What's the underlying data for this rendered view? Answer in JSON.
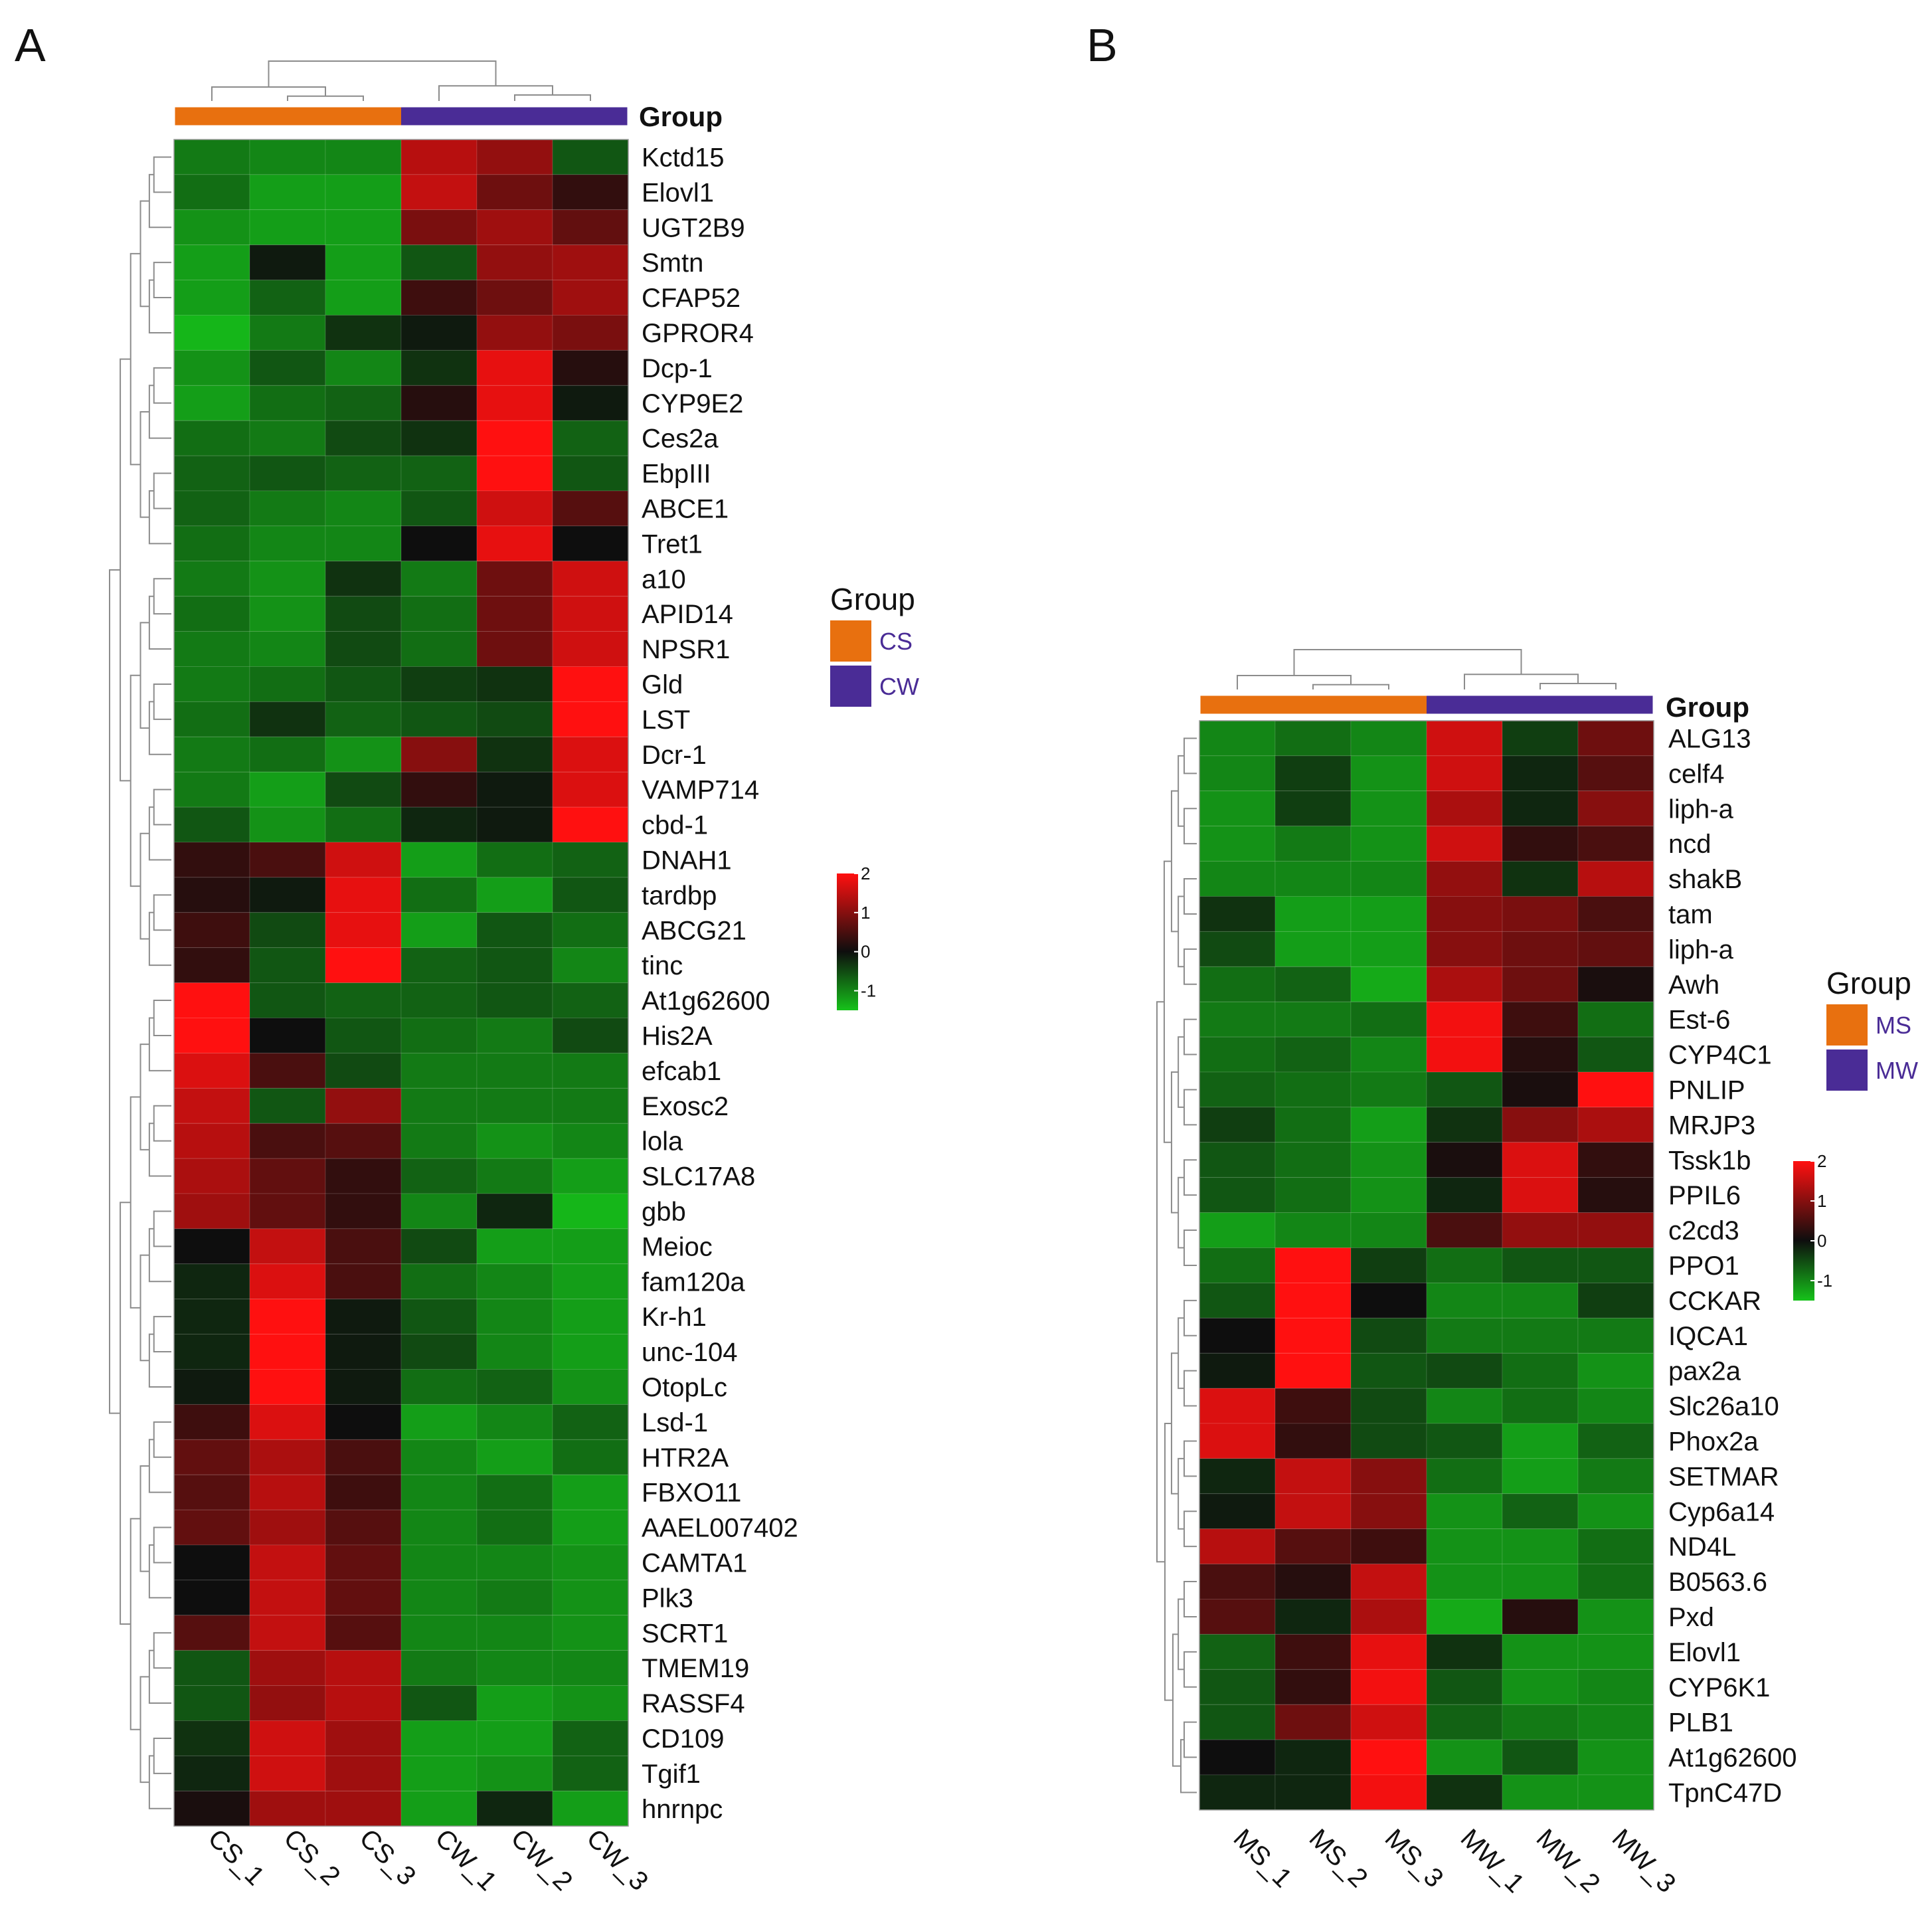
{
  "chart_data": [
    {
      "type": "heatmap",
      "panel": "A",
      "title": "",
      "columns": [
        "CS_1",
        "CS_2",
        "CS_3",
        "CW_1",
        "CW_2",
        "CW_3"
      ],
      "column_groups": [
        "CS",
        "CS",
        "CS",
        "CW",
        "CW",
        "CW"
      ],
      "annotation_label": "Group",
      "legend": {
        "title": "Group",
        "entries": [
          {
            "label": "CS",
            "color": "#e8700f"
          },
          {
            "label": "CW",
            "color": "#4a2c96"
          }
        ]
      },
      "color_scale": {
        "min": -1.5,
        "max": 2,
        "ticks": [
          "2",
          "1",
          "0",
          "-1"
        ],
        "colors": [
          "#16c21a",
          "#0e0e0e",
          "#ff1010"
        ]
      },
      "rows": [
        {
          "gene": "Kctd15",
          "values": [
            -0.9,
            -1.0,
            -1.0,
            1.4,
            1.1,
            -0.6
          ]
        },
        {
          "gene": "Elovl1",
          "values": [
            -0.8,
            -1.2,
            -1.2,
            1.5,
            0.8,
            0.3
          ]
        },
        {
          "gene": "UGT2B9",
          "values": [
            -1.1,
            -1.2,
            -1.2,
            0.9,
            1.2,
            0.7
          ]
        },
        {
          "gene": "Smtn",
          "values": [
            -1.2,
            -0.1,
            -1.2,
            -0.6,
            1.1,
            1.2
          ]
        },
        {
          "gene": "CFAP52",
          "values": [
            -1.2,
            -0.7,
            -1.2,
            0.4,
            0.8,
            1.2
          ]
        },
        {
          "gene": "GPROR4",
          "values": [
            -1.4,
            -0.9,
            -0.3,
            -0.1,
            1.1,
            0.9
          ]
        },
        {
          "gene": "Dcp-1",
          "values": [
            -1.1,
            -0.6,
            -1.0,
            -0.3,
            1.8,
            0.2
          ]
        },
        {
          "gene": "CYP9E2",
          "values": [
            -1.2,
            -0.8,
            -0.7,
            0.2,
            1.8,
            -0.1
          ]
        },
        {
          "gene": "Ces2a",
          "values": [
            -0.8,
            -0.9,
            -0.5,
            -0.3,
            2.0,
            -0.7
          ]
        },
        {
          "gene": "EbpIII",
          "values": [
            -0.7,
            -0.6,
            -0.7,
            -0.7,
            2.0,
            -0.6
          ]
        },
        {
          "gene": "ABCE1",
          "values": [
            -0.7,
            -0.9,
            -1.0,
            -0.6,
            1.6,
            0.6
          ]
        },
        {
          "gene": "Tret1",
          "values": [
            -0.8,
            -1.0,
            -1.0,
            0.0,
            1.8,
            0.0
          ]
        },
        {
          "gene": "a10",
          "values": [
            -0.9,
            -1.1,
            -0.3,
            -0.9,
            0.8,
            1.6
          ]
        },
        {
          "gene": "APID14",
          "values": [
            -0.8,
            -1.1,
            -0.5,
            -0.8,
            0.8,
            1.6
          ]
        },
        {
          "gene": "NPSR1",
          "values": [
            -0.9,
            -1.0,
            -0.5,
            -0.8,
            0.8,
            1.6
          ]
        },
        {
          "gene": "Gld",
          "values": [
            -0.9,
            -0.8,
            -0.6,
            -0.4,
            -0.3,
            2.0
          ]
        },
        {
          "gene": "LST",
          "values": [
            -0.8,
            -0.3,
            -0.7,
            -0.6,
            -0.5,
            2.0
          ]
        },
        {
          "gene": "Dcr-1",
          "values": [
            -0.9,
            -0.8,
            -1.1,
            1.0,
            -0.3,
            1.7
          ]
        },
        {
          "gene": "VAMP714",
          "values": [
            -0.9,
            -1.2,
            -0.5,
            0.3,
            -0.1,
            1.7
          ]
        },
        {
          "gene": "cbd-1",
          "values": [
            -0.6,
            -1.1,
            -0.8,
            -0.2,
            -0.1,
            2.0
          ]
        },
        {
          "gene": "DNAH1",
          "values": [
            0.3,
            0.5,
            1.6,
            -1.2,
            -0.8,
            -0.7
          ]
        },
        {
          "gene": "tardbp",
          "values": [
            0.2,
            -0.1,
            1.8,
            -0.8,
            -1.2,
            -0.6
          ]
        },
        {
          "gene": "ABCG21",
          "values": [
            0.4,
            -0.5,
            1.8,
            -1.2,
            -0.6,
            -0.8
          ]
        },
        {
          "gene": "tinc",
          "values": [
            0.3,
            -0.6,
            2.0,
            -0.7,
            -0.6,
            -1.0
          ]
        },
        {
          "gene": "At1g62600",
          "values": [
            2.0,
            -0.6,
            -0.7,
            -0.7,
            -0.6,
            -0.7
          ]
        },
        {
          "gene": "His2A",
          "values": [
            2.0,
            0.0,
            -0.6,
            -0.8,
            -0.9,
            -0.5
          ]
        },
        {
          "gene": "efcab1",
          "values": [
            1.7,
            0.5,
            -0.5,
            -0.9,
            -0.9,
            -0.9
          ]
        },
        {
          "gene": "Exosc2",
          "values": [
            1.5,
            -0.6,
            1.1,
            -0.9,
            -0.9,
            -0.9
          ]
        },
        {
          "gene": "lola",
          "values": [
            1.4,
            0.5,
            0.6,
            -0.9,
            -1.1,
            -1.0
          ]
        },
        {
          "gene": "SLC17A8",
          "values": [
            1.3,
            0.7,
            0.3,
            -0.7,
            -0.9,
            -1.2
          ]
        },
        {
          "gene": "gbb",
          "values": [
            1.2,
            0.7,
            0.3,
            -1.0,
            -0.2,
            -1.4
          ]
        },
        {
          "gene": "Meioc",
          "values": [
            0.0,
            1.5,
            0.5,
            -0.5,
            -1.2,
            -1.2
          ]
        },
        {
          "gene": "fam120a",
          "values": [
            -0.2,
            1.7,
            0.5,
            -0.8,
            -1.0,
            -1.2
          ]
        },
        {
          "gene": "Kr-h1",
          "values": [
            -0.2,
            2.0,
            -0.1,
            -0.6,
            -1.0,
            -1.2
          ]
        },
        {
          "gene": "unc-104",
          "values": [
            -0.2,
            2.0,
            -0.1,
            -0.5,
            -1.0,
            -1.2
          ]
        },
        {
          "gene": "OtopLc",
          "values": [
            -0.1,
            2.0,
            -0.1,
            -0.8,
            -0.7,
            -1.1
          ]
        },
        {
          "gene": "Lsd-1",
          "values": [
            0.4,
            1.7,
            0.0,
            -1.2,
            -1.0,
            -0.7
          ]
        },
        {
          "gene": "HTR2A",
          "values": [
            0.7,
            1.3,
            0.5,
            -1.0,
            -1.2,
            -0.8
          ]
        },
        {
          "gene": "FBXO11",
          "values": [
            0.6,
            1.4,
            0.4,
            -1.0,
            -0.8,
            -1.2
          ]
        },
        {
          "gene": "AAEL007402",
          "values": [
            0.7,
            1.2,
            0.6,
            -1.0,
            -0.8,
            -1.2
          ]
        },
        {
          "gene": "CAMTA1",
          "values": [
            0.0,
            1.5,
            0.7,
            -1.0,
            -1.0,
            -1.1
          ]
        },
        {
          "gene": "Plk3",
          "values": [
            0.0,
            1.5,
            0.7,
            -1.0,
            -0.9,
            -1.1
          ]
        },
        {
          "gene": "SCRT1",
          "values": [
            0.6,
            1.5,
            0.6,
            -1.0,
            -1.0,
            -1.1
          ]
        },
        {
          "gene": "TMEM19",
          "values": [
            -0.6,
            1.2,
            1.4,
            -0.9,
            -1.0,
            -1.0
          ]
        },
        {
          "gene": "RASSF4",
          "values": [
            -0.6,
            1.1,
            1.4,
            -0.6,
            -1.2,
            -1.1
          ]
        },
        {
          "gene": "CD109",
          "values": [
            -0.3,
            1.6,
            1.2,
            -1.2,
            -1.2,
            -0.7
          ]
        },
        {
          "gene": "Tgif1",
          "values": [
            -0.2,
            1.6,
            1.2,
            -1.2,
            -1.1,
            -0.7
          ]
        },
        {
          "gene": "hnrnpc",
          "values": [
            0.1,
            1.2,
            1.2,
            -1.2,
            -0.2,
            -1.2
          ]
        }
      ]
    },
    {
      "type": "heatmap",
      "panel": "B",
      "title": "",
      "columns": [
        "MS_1",
        "MS_2",
        "MS_3",
        "MW_1",
        "MW_2",
        "MW_3"
      ],
      "column_groups": [
        "MS",
        "MS",
        "MS",
        "MW",
        "MW",
        "MW"
      ],
      "annotation_label": "Group",
      "legend": {
        "title": "Group",
        "entries": [
          {
            "label": "MS",
            "color": "#e8700f"
          },
          {
            "label": "MW",
            "color": "#4a2c96"
          }
        ]
      },
      "color_scale": {
        "min": -1.5,
        "max": 2,
        "ticks": [
          "2",
          "1",
          "0",
          "-1"
        ],
        "colors": [
          "#16c21a",
          "#0e0e0e",
          "#ff1010"
        ]
      },
      "rows": [
        {
          "gene": "ALG13",
          "values": [
            -1.0,
            -0.8,
            -1.0,
            1.6,
            -0.4,
            0.8
          ]
        },
        {
          "gene": "celf4",
          "values": [
            -1.0,
            -0.4,
            -1.1,
            1.6,
            -0.2,
            0.6
          ]
        },
        {
          "gene": "liph-a",
          "values": [
            -1.1,
            -0.4,
            -1.1,
            1.3,
            -0.2,
            1.0
          ]
        },
        {
          "gene": "ncd",
          "values": [
            -1.1,
            -0.9,
            -1.1,
            1.6,
            0.3,
            0.5
          ]
        },
        {
          "gene": "shakB",
          "values": [
            -1.0,
            -1.0,
            -1.0,
            1.1,
            -0.3,
            1.4
          ]
        },
        {
          "gene": "tam",
          "values": [
            -0.3,
            -1.2,
            -1.2,
            1.0,
            0.9,
            0.5
          ]
        },
        {
          "gene": "liph-a",
          "values": [
            -0.5,
            -1.2,
            -1.2,
            1.0,
            0.8,
            0.7
          ]
        },
        {
          "gene": "Awh",
          "values": [
            -0.8,
            -0.7,
            -1.3,
            1.3,
            0.8,
            0.1
          ]
        },
        {
          "gene": "Est-6",
          "values": [
            -0.9,
            -0.9,
            -0.8,
            1.9,
            0.4,
            -0.8
          ]
        },
        {
          "gene": "CYP4C1",
          "values": [
            -0.8,
            -0.7,
            -1.0,
            1.9,
            0.2,
            -0.6
          ]
        },
        {
          "gene": "PNLIP",
          "values": [
            -0.7,
            -0.8,
            -0.9,
            -0.6,
            0.1,
            2.0
          ]
        },
        {
          "gene": "MRJP3",
          "values": [
            -0.4,
            -0.8,
            -1.2,
            -0.3,
            1.0,
            1.3
          ]
        },
        {
          "gene": "Tssk1b",
          "values": [
            -0.6,
            -0.8,
            -1.1,
            0.1,
            1.7,
            0.3
          ]
        },
        {
          "gene": "PPIL6",
          "values": [
            -0.6,
            -0.8,
            -1.1,
            -0.2,
            1.7,
            0.2
          ]
        },
        {
          "gene": "c2cd3",
          "values": [
            -1.2,
            -1.0,
            -1.0,
            0.5,
            1.1,
            1.1
          ]
        },
        {
          "gene": "PPO1",
          "values": [
            -0.8,
            2.0,
            -0.4,
            -0.8,
            -0.6,
            -0.6
          ]
        },
        {
          "gene": "CCKAR",
          "values": [
            -0.6,
            2.0,
            0.0,
            -1.0,
            -1.0,
            -0.4
          ]
        },
        {
          "gene": "IQCA1",
          "values": [
            0.0,
            2.0,
            -0.5,
            -0.9,
            -0.9,
            -0.9
          ]
        },
        {
          "gene": "pax2a",
          "values": [
            -0.1,
            2.0,
            -0.6,
            -0.5,
            -0.8,
            -1.1
          ]
        },
        {
          "gene": "Slc26a10",
          "values": [
            1.7,
            0.4,
            -0.5,
            -1.0,
            -0.8,
            -1.0
          ]
        },
        {
          "gene": "Phox2a",
          "values": [
            1.7,
            0.3,
            -0.5,
            -0.6,
            -1.2,
            -0.7
          ]
        },
        {
          "gene": "SETMAR",
          "values": [
            -0.2,
            1.5,
            1.0,
            -0.8,
            -1.2,
            -0.9
          ]
        },
        {
          "gene": "Cyp6a14",
          "values": [
            -0.1,
            1.5,
            1.0,
            -1.1,
            -0.7,
            -1.1
          ]
        },
        {
          "gene": "ND4L",
          "values": [
            1.4,
            0.6,
            0.4,
            -1.1,
            -1.1,
            -0.8
          ]
        },
        {
          "gene": "B0563.6",
          "values": [
            0.5,
            0.2,
            1.5,
            -1.1,
            -1.1,
            -0.8
          ]
        },
        {
          "gene": "Pxd",
          "values": [
            0.6,
            -0.2,
            1.3,
            -1.3,
            0.2,
            -1.1
          ]
        },
        {
          "gene": "Elovl1",
          "values": [
            -0.7,
            0.4,
            1.8,
            -0.3,
            -1.1,
            -1.1
          ]
        },
        {
          "gene": "CYP6K1",
          "values": [
            -0.6,
            0.3,
            1.9,
            -0.6,
            -1.1,
            -1.0
          ]
        },
        {
          "gene": "PLB1",
          "values": [
            -0.6,
            0.8,
            1.6,
            -0.7,
            -0.9,
            -1.0
          ]
        },
        {
          "gene": "At1g62600",
          "values": [
            0.0,
            -0.2,
            2.0,
            -1.1,
            -0.6,
            -1.1
          ]
        },
        {
          "gene": "TpnC47D",
          "values": [
            -0.2,
            -0.2,
            1.9,
            -0.3,
            -1.1,
            -1.1
          ]
        }
      ]
    }
  ]
}
